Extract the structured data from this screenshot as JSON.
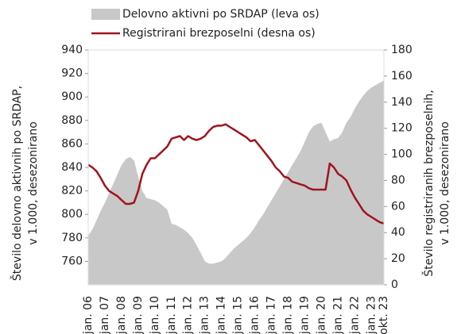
{
  "chart_data": {
    "type": "area_line",
    "ylabel": [
      "Število delovno aktivnih po SRDAP,",
      "v 1.000, desezonirano"
    ],
    "y2label": [
      "Število registriranih brezposelnih,",
      "v 1.000, desezonirano"
    ],
    "categories": [
      "jan. 06",
      null,
      null,
      null,
      "jan. 07",
      null,
      null,
      null,
      "jan. 08",
      null,
      null,
      null,
      "jan. 09",
      null,
      null,
      null,
      "jan. 10",
      null,
      null,
      null,
      "jan. 11",
      null,
      null,
      null,
      "jan. 12",
      null,
      null,
      null,
      "jan. 13",
      null,
      null,
      null,
      "jan. 14",
      null,
      null,
      null,
      "jan. 15",
      null,
      null,
      null,
      "jan. 16",
      null,
      null,
      null,
      "jan. 17",
      null,
      null,
      null,
      "jan. 18",
      null,
      null,
      null,
      "jan. 19",
      null,
      null,
      null,
      "jan. 20",
      null,
      null,
      null,
      "jan. 21",
      null,
      null,
      null,
      "jan. 22",
      null,
      null,
      null,
      "jan. 23",
      null,
      null,
      "okt. 23"
    ],
    "series": [
      {
        "name": "Delovno aktivni po SRDAP (leva os)",
        "color": "#c8c8c8",
        "kind": "area",
        "axis": "y",
        "values": [
          782,
          787,
          795,
          803,
          810,
          818,
          826,
          834,
          842,
          847,
          849,
          846,
          832,
          820,
          814,
          813,
          812,
          810,
          807,
          804,
          792,
          791,
          789,
          787,
          784,
          780,
          774,
          767,
          760,
          758,
          758,
          759,
          760,
          763,
          767,
          771,
          774,
          777,
          780,
          784,
          789,
          795,
          800,
          806,
          812,
          818,
          824,
          830,
          836,
          842,
          848,
          854,
          862,
          870,
          875,
          877,
          878,
          870,
          862,
          864,
          865,
          870,
          878,
          883,
          890,
          896,
          901,
          905,
          908,
          910,
          912,
          914
        ]
      },
      {
        "name": "Registrirani brezposelni (desna os)",
        "color": "#a0141e",
        "kind": "line",
        "axis": "y2",
        "values": [
          92,
          90,
          87,
          82,
          76,
          72,
          70,
          68,
          65,
          62,
          62,
          63,
          72,
          85,
          92,
          97,
          97,
          100,
          103,
          106,
          112,
          113,
          114,
          111,
          114,
          112,
          111,
          112,
          114,
          118,
          121,
          122,
          122,
          123,
          121,
          119,
          117,
          115,
          113,
          110,
          111,
          107,
          103,
          99,
          95,
          90,
          87,
          83,
          82,
          79,
          78,
          77,
          76,
          74,
          73,
          73,
          73,
          73,
          93,
          90,
          85,
          83,
          80,
          73,
          67,
          62,
          57,
          54,
          52,
          50,
          48,
          47
        ]
      }
    ],
    "ylim": [
      740,
      940
    ],
    "yticks": [
      760,
      780,
      800,
      820,
      840,
      860,
      880,
      900,
      920,
      940
    ],
    "y2lim": [
      0,
      180
    ],
    "y2ticks": [
      0,
      20,
      40,
      60,
      80,
      100,
      120,
      140,
      160,
      180
    ],
    "grid": false
  }
}
